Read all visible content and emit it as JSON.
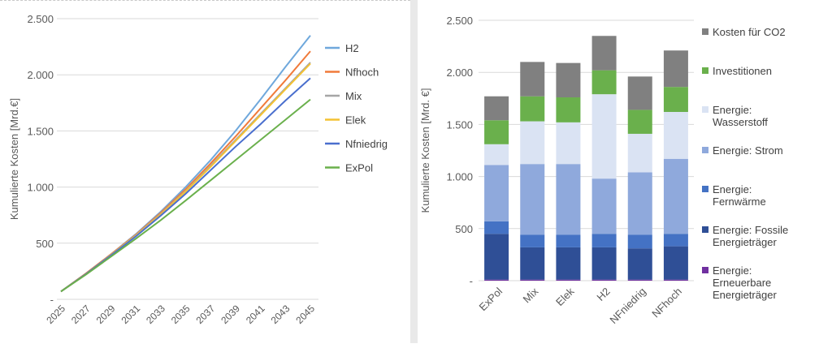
{
  "chart_data": [
    {
      "type": "line",
      "ylabel": "Kumulierte Kosten [Mrd.€]",
      "xlabel": "",
      "x": [
        2025,
        2027,
        2029,
        2031,
        2033,
        2035,
        2037,
        2039,
        2041,
        2043,
        2045
      ],
      "x_tick_labels": [
        "2025",
        "2027",
        "2029",
        "2031",
        "2033",
        "2035",
        "2037",
        "2039",
        "2041",
        "2043",
        "2045"
      ],
      "y_ticks": [
        0,
        500,
        1000,
        1500,
        2000,
        2500
      ],
      "y_tick_labels": [
        "-",
        "500",
        "1.000",
        "1.500",
        "2.000",
        "2.500"
      ],
      "ylim": [
        0,
        2500
      ],
      "grid": true,
      "legend_position": "right",
      "series": [
        {
          "name": "H2",
          "color": "#6fa8dc",
          "values": [
            70,
            230,
            400,
            580,
            780,
            1000,
            1240,
            1500,
            1780,
            2070,
            2350
          ]
        },
        {
          "name": "Nfhoch",
          "color": "#f07a3a",
          "values": [
            70,
            230,
            400,
            575,
            770,
            980,
            1210,
            1450,
            1700,
            1950,
            2210
          ]
        },
        {
          "name": "Mix",
          "color": "#a6a6a6",
          "values": [
            70,
            225,
            395,
            570,
            760,
            965,
            1190,
            1420,
            1650,
            1880,
            2110
          ]
        },
        {
          "name": "Elek",
          "color": "#f4c232",
          "values": [
            70,
            225,
            392,
            565,
            755,
            960,
            1180,
            1410,
            1640,
            1870,
            2100
          ]
        },
        {
          "name": "Nfniedrig",
          "color": "#4a6fce",
          "values": [
            70,
            225,
            390,
            560,
            745,
            940,
            1150,
            1360,
            1560,
            1770,
            1970
          ]
        },
        {
          "name": "ExPol",
          "color": "#6ab04c",
          "values": [
            70,
            220,
            380,
            540,
            705,
            880,
            1060,
            1240,
            1420,
            1600,
            1780
          ]
        }
      ]
    },
    {
      "type": "bar",
      "stacked": true,
      "ylabel": "Kumulierte Kosten [Mrd. €]",
      "xlabel": "",
      "categories": [
        "ExPol",
        "Mix",
        "Elek",
        "H2",
        "NFniedrig",
        "NFhoch"
      ],
      "y_ticks": [
        0,
        500,
        1000,
        1500,
        2000,
        2500
      ],
      "y_tick_labels": [
        "-",
        "500",
        "1.000",
        "1.500",
        "2.000",
        "2.500"
      ],
      "ylim": [
        0,
        2500
      ],
      "grid": true,
      "legend_position": "right",
      "series": [
        {
          "name": "Energie: Erneuerbare Energieträger",
          "legend_lines": [
            "Energie:",
            "Erneuerbare",
            "Energieträger"
          ],
          "color": "#7030a0",
          "values": [
            10,
            10,
            10,
            10,
            10,
            10
          ]
        },
        {
          "name": "Energie: Fossile Energieträger",
          "legend_lines": [
            "Energie: Fossile",
            "Energieträger"
          ],
          "color": "#2f4f96",
          "values": [
            440,
            310,
            310,
            310,
            300,
            320
          ]
        },
        {
          "name": "Energie: Fernwärme",
          "legend_lines": [
            "Energie:",
            "Fernwärme"
          ],
          "color": "#4472c4",
          "values": [
            120,
            120,
            120,
            130,
            130,
            120
          ]
        },
        {
          "name": "Energie: Strom",
          "legend_lines": [
            "Energie: Strom"
          ],
          "color": "#8fa9dc",
          "values": [
            540,
            680,
            680,
            530,
            600,
            720
          ]
        },
        {
          "name": "Energie: Wasserstoff",
          "legend_lines": [
            "Energie:",
            "Wasserstoff"
          ],
          "color": "#dae3f3",
          "values": [
            200,
            410,
            400,
            810,
            370,
            450
          ]
        },
        {
          "name": "Investitionen",
          "legend_lines": [
            "Investitionen"
          ],
          "color": "#6ab04c",
          "values": [
            230,
            240,
            240,
            230,
            230,
            240
          ]
        },
        {
          "name": "Kosten für CO2",
          "legend_lines": [
            "Kosten für CO2"
          ],
          "color": "#808080",
          "values": [
            230,
            330,
            330,
            330,
            320,
            350
          ]
        }
      ]
    }
  ]
}
